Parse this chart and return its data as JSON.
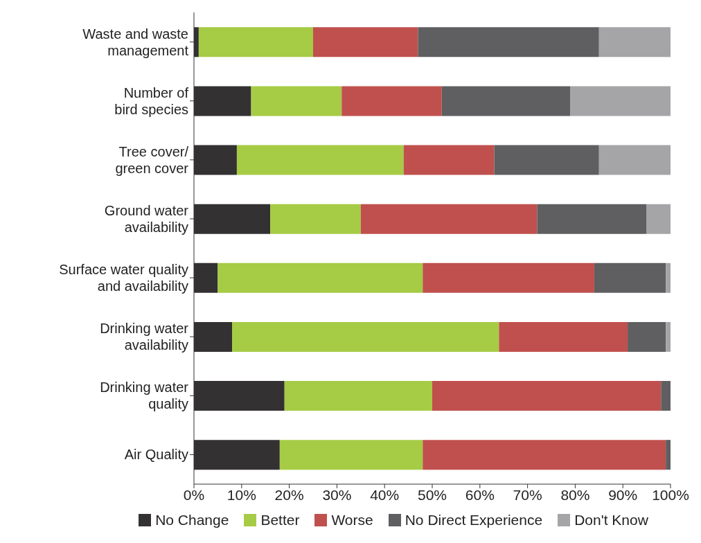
{
  "chart_data": {
    "type": "bar",
    "orientation": "horizontal",
    "stacked": true,
    "categories": [
      "Waste and waste\nmanagement",
      "Number of\nbird species",
      "Tree cover/\ngreen cover",
      "Ground water\navailability",
      "Surface water quality\nand availability",
      "Drinking water\navailability",
      "Drinking water\nquality",
      "Air Quality"
    ],
    "series": [
      {
        "name": "No Change",
        "color": "#333132",
        "values": [
          1,
          12,
          9,
          16,
          5,
          8,
          19,
          18
        ]
      },
      {
        "name": "Better",
        "color": "#a6cb45",
        "values": [
          24,
          19,
          35,
          19,
          43,
          56,
          31,
          30
        ]
      },
      {
        "name": "Worse",
        "color": "#c0504d",
        "values": [
          22,
          21,
          19,
          37,
          36,
          27,
          48,
          51
        ]
      },
      {
        "name": "No Direct Experience",
        "color": "#5f5f61",
        "values": [
          38,
          27,
          22,
          23,
          15,
          8,
          2,
          1
        ]
      },
      {
        "name": "Don't Know",
        "color": "#a5a5a8",
        "values": [
          15,
          21,
          15,
          5,
          1,
          1,
          0,
          0
        ]
      }
    ],
    "xlim": [
      0,
      100
    ],
    "xticks": [
      {
        "value": 0,
        "label": "0%"
      },
      {
        "value": 10,
        "label": "10%"
      },
      {
        "value": 20,
        "label": "20%"
      },
      {
        "value": 30,
        "label": "30%"
      },
      {
        "value": 40,
        "label": "40%"
      },
      {
        "value": 50,
        "label": "50%"
      },
      {
        "value": 60,
        "label": "60%"
      },
      {
        "value": 70,
        "label": "70%"
      },
      {
        "value": 80,
        "label": "80%"
      },
      {
        "value": 90,
        "label": "90%"
      },
      {
        "value": 100,
        "label": "100%"
      }
    ],
    "grid": false,
    "legend": "bottom"
  }
}
